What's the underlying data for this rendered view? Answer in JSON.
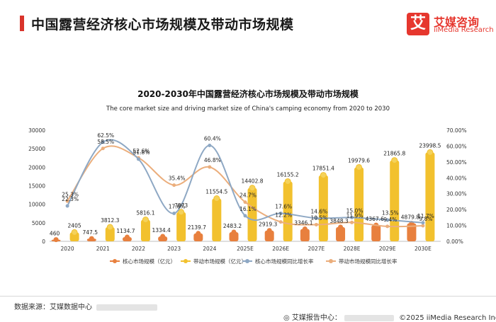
{
  "header": {
    "title": "中国露营经济核心市场规模及带动市场规模",
    "logo_mark": "艾",
    "logo_cn": "艾媒咨询",
    "logo_en": "iiMedia Research"
  },
  "footer": {
    "source": "数据来源：艾媒数据中心",
    "report_center": "艾媒报告中心：",
    "copyright": "©2025  iiMedia Research  Inc"
  },
  "colors": {
    "core": "#e8803e",
    "driving": "#f2c12e",
    "core_growth": "#8ea8c4",
    "driving_growth": "#ebae7c",
    "accent": "#d9342b"
  },
  "chart_data": {
    "type": "bar",
    "title": "2020-2030年中国露营经济核心市场规模及带动市场规模",
    "subtitle": "The core market size and driving market size of China's camping economy from 2020 to 2030",
    "categories": [
      "2020",
      "2021",
      "2022",
      "2023",
      "2024",
      "2025E",
      "2026E",
      "2027E",
      "2028E",
      "2029E",
      "2030E"
    ],
    "series": [
      {
        "name": "核心市场规模（亿元）",
        "kind": "bar",
        "axis": "left",
        "values": [
          460,
          747.5,
          1134.7,
          1334.4,
          2139.7,
          2483.2,
          2919.3,
          3346.1,
          3848.3,
          4367.6,
          4879.8
        ],
        "labels": [
          "460",
          "747.5",
          "1134.7",
          "1334.4",
          "2139.7",
          "2483.2",
          "2919.3",
          "3346.1",
          "3848.3",
          "4367.6",
          "4879.8"
        ]
      },
      {
        "name": "带动市场规模（亿元）",
        "kind": "bar",
        "axis": "left",
        "values": [
          2405,
          3812.3,
          5816.1,
          7873,
          11554.5,
          14402.8,
          16155.2,
          17851.4,
          19979.6,
          21865.8,
          23998.5
        ],
        "labels": [
          "2405",
          "3812.3",
          "5816.1",
          "7873",
          "11554.5",
          "14402.8",
          "16155.2",
          "17851.4",
          "19979.6",
          "21865.8",
          "23998.5"
        ]
      },
      {
        "name": "核心市场规模同比增长率",
        "kind": "line",
        "axis": "right",
        "values": [
          22.3,
          62.5,
          51.8,
          17.6,
          60.4,
          16.1,
          17.6,
          14.6,
          15.0,
          13.5,
          11.7
        ],
        "labels": [
          "22.3%",
          "62.5%",
          "51.8%",
          "17.6%",
          "60.4%",
          "16.1%",
          "17.6%",
          "14.6%",
          "15.0%",
          "13.5%",
          "11.7%"
        ]
      },
      {
        "name": "带动市场规模同比增长率",
        "kind": "line",
        "axis": "right",
        "values": [
          25.3,
          58.5,
          52.6,
          35.4,
          46.8,
          24.7,
          12.2,
          10.5,
          11.9,
          9.4,
          9.8
        ],
        "labels": [
          "25.3%",
          "58.5%",
          "52.6%",
          "35.4%",
          "46.8%",
          "24.7%",
          "12.2%",
          "10.5%",
          "11.9%",
          "9.4%",
          "9.8%"
        ]
      }
    ],
    "y_left": {
      "min": 0,
      "max": 30000,
      "ticks": [
        0,
        5000,
        10000,
        15000,
        20000,
        25000,
        30000
      ],
      "tick_labels": [
        "0",
        "5000",
        "10000",
        "15000",
        "20000",
        "25000",
        "30000"
      ]
    },
    "y_right": {
      "min": 0,
      "max": 70,
      "ticks": [
        0,
        10,
        20,
        30,
        40,
        50,
        60,
        70
      ],
      "tick_labels": [
        "0.00%",
        "10.00%",
        "20.00%",
        "30.00%",
        "40.00%",
        "50.00%",
        "60.00%",
        "70.00%"
      ]
    },
    "grid": false,
    "legend": "bottom"
  }
}
